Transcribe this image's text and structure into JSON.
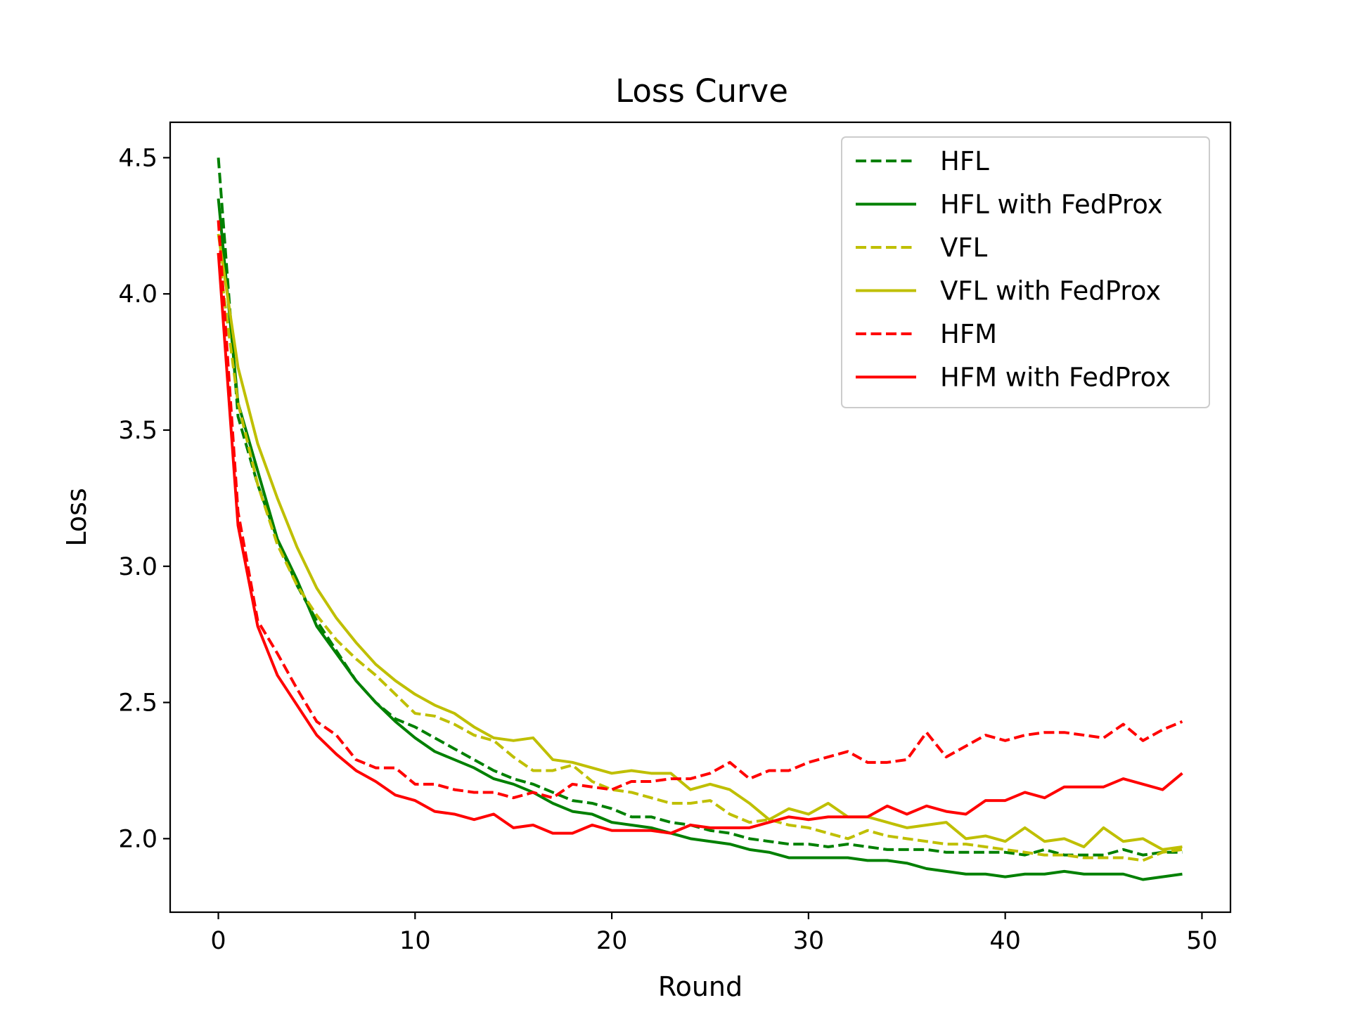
{
  "chart_data": {
    "type": "line",
    "title": "Loss Curve",
    "xlabel": "Round",
    "ylabel": "Loss",
    "xlim": [
      -2.45,
      51.45
    ],
    "ylim": [
      1.73,
      4.63
    ],
    "xticks": [
      0,
      10,
      20,
      30,
      40,
      50
    ],
    "yticks": [
      2.0,
      2.5,
      3.0,
      3.5,
      4.0,
      4.5
    ],
    "xtick_labels": [
      "0",
      "10",
      "20",
      "30",
      "40",
      "50"
    ],
    "ytick_labels": [
      "2.0",
      "2.5",
      "3.0",
      "3.5",
      "4.0",
      "4.5"
    ],
    "grid": false,
    "legend_position": "top-right",
    "series": [
      {
        "name": "HFL",
        "color": "#008000",
        "style": "dashed",
        "values": [
          4.5,
          3.55,
          3.3,
          3.1,
          2.93,
          2.8,
          2.69,
          2.58,
          2.5,
          2.44,
          2.41,
          2.37,
          2.33,
          2.29,
          2.25,
          2.22,
          2.2,
          2.17,
          2.14,
          2.13,
          2.11,
          2.08,
          2.08,
          2.06,
          2.05,
          2.03,
          2.02,
          2.0,
          1.99,
          1.98,
          1.98,
          1.97,
          1.98,
          1.97,
          1.96,
          1.96,
          1.96,
          1.95,
          1.95,
          1.95,
          1.95,
          1.94,
          1.96,
          1.94,
          1.94,
          1.94,
          1.96,
          1.94,
          1.95,
          1.95
        ]
      },
      {
        "name": "HFL with FedProx",
        "color": "#008000",
        "style": "solid",
        "values": [
          4.35,
          3.6,
          3.35,
          3.1,
          2.95,
          2.78,
          2.68,
          2.58,
          2.5,
          2.43,
          2.37,
          2.32,
          2.29,
          2.26,
          2.22,
          2.2,
          2.17,
          2.13,
          2.1,
          2.09,
          2.06,
          2.05,
          2.04,
          2.02,
          2.0,
          1.99,
          1.98,
          1.96,
          1.95,
          1.93,
          1.93,
          1.93,
          1.93,
          1.92,
          1.92,
          1.91,
          1.89,
          1.88,
          1.87,
          1.87,
          1.86,
          1.87,
          1.87,
          1.88,
          1.87,
          1.87,
          1.87,
          1.85,
          1.86,
          1.87
        ]
      },
      {
        "name": "VFL",
        "color": "#bfbf00",
        "style": "dashed",
        "values": [
          4.15,
          3.6,
          3.3,
          3.08,
          2.93,
          2.82,
          2.73,
          2.66,
          2.6,
          2.53,
          2.46,
          2.45,
          2.42,
          2.38,
          2.36,
          2.3,
          2.25,
          2.25,
          2.27,
          2.21,
          2.18,
          2.17,
          2.15,
          2.13,
          2.13,
          2.14,
          2.09,
          2.06,
          2.07,
          2.05,
          2.04,
          2.02,
          2.0,
          2.03,
          2.01,
          2.0,
          1.99,
          1.98,
          1.98,
          1.97,
          1.96,
          1.95,
          1.94,
          1.94,
          1.93,
          1.93,
          1.93,
          1.92,
          1.95,
          1.96
        ]
      },
      {
        "name": "VFL with FedProx",
        "color": "#bfbf00",
        "style": "solid",
        "values": [
          4.22,
          3.73,
          3.45,
          3.25,
          3.07,
          2.92,
          2.81,
          2.72,
          2.64,
          2.58,
          2.53,
          2.49,
          2.46,
          2.41,
          2.37,
          2.36,
          2.37,
          2.29,
          2.28,
          2.26,
          2.24,
          2.25,
          2.24,
          2.24,
          2.18,
          2.2,
          2.18,
          2.13,
          2.07,
          2.11,
          2.09,
          2.13,
          2.08,
          2.08,
          2.06,
          2.04,
          2.05,
          2.06,
          2.0,
          2.01,
          1.99,
          2.04,
          1.99,
          2.0,
          1.97,
          2.04,
          1.99,
          2.0,
          1.96,
          1.97
        ]
      },
      {
        "name": "HFM",
        "color": "#ff0000",
        "style": "dashed",
        "values": [
          4.27,
          3.2,
          2.8,
          2.68,
          2.55,
          2.43,
          2.38,
          2.29,
          2.26,
          2.26,
          2.2,
          2.2,
          2.18,
          2.17,
          2.17,
          2.15,
          2.17,
          2.15,
          2.2,
          2.19,
          2.18,
          2.21,
          2.21,
          2.22,
          2.22,
          2.24,
          2.28,
          2.22,
          2.25,
          2.25,
          2.28,
          2.3,
          2.32,
          2.28,
          2.28,
          2.29,
          2.39,
          2.3,
          2.34,
          2.38,
          2.36,
          2.38,
          2.39,
          2.39,
          2.38,
          2.37,
          2.42,
          2.36,
          2.4,
          2.43
        ]
      },
      {
        "name": "HFM with FedProx",
        "color": "#ff0000",
        "style": "solid",
        "values": [
          4.15,
          3.15,
          2.78,
          2.6,
          2.49,
          2.38,
          2.31,
          2.25,
          2.21,
          2.16,
          2.14,
          2.1,
          2.09,
          2.07,
          2.09,
          2.04,
          2.05,
          2.02,
          2.02,
          2.05,
          2.03,
          2.03,
          2.03,
          2.02,
          2.05,
          2.04,
          2.04,
          2.04,
          2.06,
          2.08,
          2.07,
          2.08,
          2.08,
          2.08,
          2.12,
          2.09,
          2.12,
          2.1,
          2.09,
          2.14,
          2.14,
          2.17,
          2.15,
          2.19,
          2.19,
          2.19,
          2.22,
          2.2,
          2.18,
          2.24
        ]
      }
    ]
  }
}
